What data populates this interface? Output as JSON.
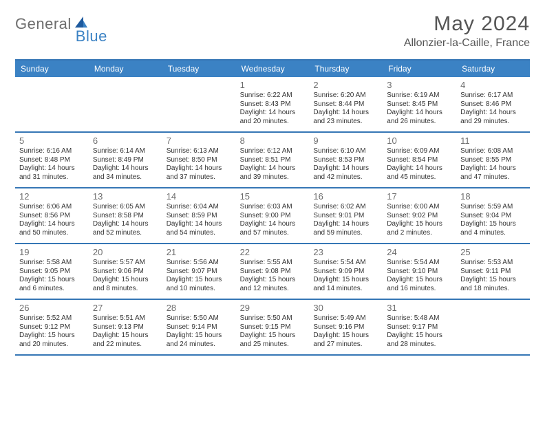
{
  "logo": {
    "text1": "General",
    "text2": "Blue"
  },
  "title": "May 2024",
  "location": "Allonzier-la-Caille, France",
  "colors": {
    "header_bg": "#3b82c4",
    "header_border": "#3576b5",
    "text_gray": "#6d6d6d",
    "body_text": "#333333",
    "logo_gray": "#6d6d6d",
    "logo_blue": "#3b82c4",
    "background": "#ffffff"
  },
  "fonts": {
    "title_size": 30,
    "location_size": 16,
    "dayname_size": 12,
    "daynum_size": 13,
    "body_size": 10
  },
  "daynames": [
    "Sunday",
    "Monday",
    "Tuesday",
    "Wednesday",
    "Thursday",
    "Friday",
    "Saturday"
  ],
  "weeks": [
    [
      {
        "num": "",
        "sunrise": "",
        "sunset": "",
        "daylight": ""
      },
      {
        "num": "",
        "sunrise": "",
        "sunset": "",
        "daylight": ""
      },
      {
        "num": "",
        "sunrise": "",
        "sunset": "",
        "daylight": ""
      },
      {
        "num": "1",
        "sunrise": "Sunrise: 6:22 AM",
        "sunset": "Sunset: 8:43 PM",
        "daylight": "Daylight: 14 hours and 20 minutes."
      },
      {
        "num": "2",
        "sunrise": "Sunrise: 6:20 AM",
        "sunset": "Sunset: 8:44 PM",
        "daylight": "Daylight: 14 hours and 23 minutes."
      },
      {
        "num": "3",
        "sunrise": "Sunrise: 6:19 AM",
        "sunset": "Sunset: 8:45 PM",
        "daylight": "Daylight: 14 hours and 26 minutes."
      },
      {
        "num": "4",
        "sunrise": "Sunrise: 6:17 AM",
        "sunset": "Sunset: 8:46 PM",
        "daylight": "Daylight: 14 hours and 29 minutes."
      }
    ],
    [
      {
        "num": "5",
        "sunrise": "Sunrise: 6:16 AM",
        "sunset": "Sunset: 8:48 PM",
        "daylight": "Daylight: 14 hours and 31 minutes."
      },
      {
        "num": "6",
        "sunrise": "Sunrise: 6:14 AM",
        "sunset": "Sunset: 8:49 PM",
        "daylight": "Daylight: 14 hours and 34 minutes."
      },
      {
        "num": "7",
        "sunrise": "Sunrise: 6:13 AM",
        "sunset": "Sunset: 8:50 PM",
        "daylight": "Daylight: 14 hours and 37 minutes."
      },
      {
        "num": "8",
        "sunrise": "Sunrise: 6:12 AM",
        "sunset": "Sunset: 8:51 PM",
        "daylight": "Daylight: 14 hours and 39 minutes."
      },
      {
        "num": "9",
        "sunrise": "Sunrise: 6:10 AM",
        "sunset": "Sunset: 8:53 PM",
        "daylight": "Daylight: 14 hours and 42 minutes."
      },
      {
        "num": "10",
        "sunrise": "Sunrise: 6:09 AM",
        "sunset": "Sunset: 8:54 PM",
        "daylight": "Daylight: 14 hours and 45 minutes."
      },
      {
        "num": "11",
        "sunrise": "Sunrise: 6:08 AM",
        "sunset": "Sunset: 8:55 PM",
        "daylight": "Daylight: 14 hours and 47 minutes."
      }
    ],
    [
      {
        "num": "12",
        "sunrise": "Sunrise: 6:06 AM",
        "sunset": "Sunset: 8:56 PM",
        "daylight": "Daylight: 14 hours and 50 minutes."
      },
      {
        "num": "13",
        "sunrise": "Sunrise: 6:05 AM",
        "sunset": "Sunset: 8:58 PM",
        "daylight": "Daylight: 14 hours and 52 minutes."
      },
      {
        "num": "14",
        "sunrise": "Sunrise: 6:04 AM",
        "sunset": "Sunset: 8:59 PM",
        "daylight": "Daylight: 14 hours and 54 minutes."
      },
      {
        "num": "15",
        "sunrise": "Sunrise: 6:03 AM",
        "sunset": "Sunset: 9:00 PM",
        "daylight": "Daylight: 14 hours and 57 minutes."
      },
      {
        "num": "16",
        "sunrise": "Sunrise: 6:02 AM",
        "sunset": "Sunset: 9:01 PM",
        "daylight": "Daylight: 14 hours and 59 minutes."
      },
      {
        "num": "17",
        "sunrise": "Sunrise: 6:00 AM",
        "sunset": "Sunset: 9:02 PM",
        "daylight": "Daylight: 15 hours and 2 minutes."
      },
      {
        "num": "18",
        "sunrise": "Sunrise: 5:59 AM",
        "sunset": "Sunset: 9:04 PM",
        "daylight": "Daylight: 15 hours and 4 minutes."
      }
    ],
    [
      {
        "num": "19",
        "sunrise": "Sunrise: 5:58 AM",
        "sunset": "Sunset: 9:05 PM",
        "daylight": "Daylight: 15 hours and 6 minutes."
      },
      {
        "num": "20",
        "sunrise": "Sunrise: 5:57 AM",
        "sunset": "Sunset: 9:06 PM",
        "daylight": "Daylight: 15 hours and 8 minutes."
      },
      {
        "num": "21",
        "sunrise": "Sunrise: 5:56 AM",
        "sunset": "Sunset: 9:07 PM",
        "daylight": "Daylight: 15 hours and 10 minutes."
      },
      {
        "num": "22",
        "sunrise": "Sunrise: 5:55 AM",
        "sunset": "Sunset: 9:08 PM",
        "daylight": "Daylight: 15 hours and 12 minutes."
      },
      {
        "num": "23",
        "sunrise": "Sunrise: 5:54 AM",
        "sunset": "Sunset: 9:09 PM",
        "daylight": "Daylight: 15 hours and 14 minutes."
      },
      {
        "num": "24",
        "sunrise": "Sunrise: 5:54 AM",
        "sunset": "Sunset: 9:10 PM",
        "daylight": "Daylight: 15 hours and 16 minutes."
      },
      {
        "num": "25",
        "sunrise": "Sunrise: 5:53 AM",
        "sunset": "Sunset: 9:11 PM",
        "daylight": "Daylight: 15 hours and 18 minutes."
      }
    ],
    [
      {
        "num": "26",
        "sunrise": "Sunrise: 5:52 AM",
        "sunset": "Sunset: 9:12 PM",
        "daylight": "Daylight: 15 hours and 20 minutes."
      },
      {
        "num": "27",
        "sunrise": "Sunrise: 5:51 AM",
        "sunset": "Sunset: 9:13 PM",
        "daylight": "Daylight: 15 hours and 22 minutes."
      },
      {
        "num": "28",
        "sunrise": "Sunrise: 5:50 AM",
        "sunset": "Sunset: 9:14 PM",
        "daylight": "Daylight: 15 hours and 24 minutes."
      },
      {
        "num": "29",
        "sunrise": "Sunrise: 5:50 AM",
        "sunset": "Sunset: 9:15 PM",
        "daylight": "Daylight: 15 hours and 25 minutes."
      },
      {
        "num": "30",
        "sunrise": "Sunrise: 5:49 AM",
        "sunset": "Sunset: 9:16 PM",
        "daylight": "Daylight: 15 hours and 27 minutes."
      },
      {
        "num": "31",
        "sunrise": "Sunrise: 5:48 AM",
        "sunset": "Sunset: 9:17 PM",
        "daylight": "Daylight: 15 hours and 28 minutes."
      },
      {
        "num": "",
        "sunrise": "",
        "sunset": "",
        "daylight": ""
      }
    ]
  ]
}
